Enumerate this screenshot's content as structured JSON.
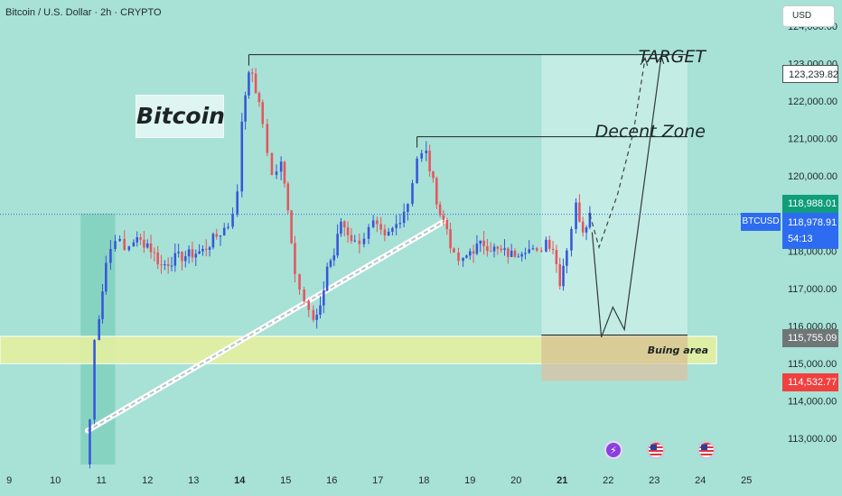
{
  "header": {
    "title": "Bitcoin / U.S. Dollar · 2h · CRYPTO"
  },
  "currency_button": "USD",
  "symbol_tag": "BTCUSD",
  "annotations": {
    "bitcoin_label": "Bitcoin",
    "target": "TARGET",
    "decent_zone": "Decent Zone",
    "buying_area": "Buing area"
  },
  "price_tags": {
    "target": "123,239.82",
    "high": "118,988.01",
    "current": "118,978.91",
    "countdown": "54:13",
    "buy_top": "115,755.09",
    "buy_bottom": "114,532.77"
  },
  "colors": {
    "background": "#a8e1d6",
    "up_candle": "#3556d9",
    "down_candle": "#e5555d",
    "buying_zone": "#e3f0a0",
    "forecast_box": "#c8ede6",
    "current_line": "#2d6cf0"
  },
  "icons": [
    "flash-icon",
    "us-flag-icon",
    "us-flag-icon"
  ],
  "chart_data": {
    "type": "candlestick",
    "ylim": [
      112300,
      124700
    ],
    "xlim": [
      8.8,
      25.7
    ],
    "y_ticks": [
      {
        "value": 113000,
        "label": "113,000.00"
      },
      {
        "value": 114000,
        "label": "114,000.00"
      },
      {
        "value": 115000,
        "label": "115,000.00"
      },
      {
        "value": 116000,
        "label": "116,000.00"
      },
      {
        "value": 117000,
        "label": "117,000.00"
      },
      {
        "value": 118000,
        "label": "118,000.00"
      },
      {
        "value": 119000,
        "label": "119,000.00"
      },
      {
        "value": 120000,
        "label": "120,000.00"
      },
      {
        "value": 121000,
        "label": "121,000.00"
      },
      {
        "value": 122000,
        "label": "122,000.00"
      },
      {
        "value": 123000,
        "label": "123,000.00"
      },
      {
        "value": 124000,
        "label": "124,000.00"
      }
    ],
    "x_ticks": [
      {
        "value": 9,
        "label": "9",
        "bold": false
      },
      {
        "value": 10,
        "label": "10",
        "bold": false
      },
      {
        "value": 11,
        "label": "11",
        "bold": false
      },
      {
        "value": 12,
        "label": "12",
        "bold": false
      },
      {
        "value": 13,
        "label": "13",
        "bold": false
      },
      {
        "value": 14,
        "label": "14",
        "bold": true
      },
      {
        "value": 15,
        "label": "15",
        "bold": false
      },
      {
        "value": 16,
        "label": "16",
        "bold": false
      },
      {
        "value": 17,
        "label": "17",
        "bold": false
      },
      {
        "value": 18,
        "label": "18",
        "bold": false
      },
      {
        "value": 19,
        "label": "19",
        "bold": false
      },
      {
        "value": 20,
        "label": "20",
        "bold": false
      },
      {
        "value": 21,
        "label": "21",
        "bold": true
      },
      {
        "value": 22,
        "label": "22",
        "bold": false
      },
      {
        "value": 23,
        "label": "23",
        "bold": false
      },
      {
        "value": 24,
        "label": "24",
        "bold": false
      },
      {
        "value": 25,
        "label": "25",
        "bold": false
      }
    ],
    "anchors": [
      [
        10.65,
        112300
      ],
      [
        10.75,
        113500
      ],
      [
        10.85,
        115600
      ],
      [
        10.95,
        116300
      ],
      [
        11.1,
        117700
      ],
      [
        11.3,
        118400
      ],
      [
        11.5,
        118000
      ],
      [
        11.7,
        118300
      ],
      [
        12.0,
        118200
      ],
      [
        12.3,
        117600
      ],
      [
        12.6,
        117800
      ],
      [
        12.9,
        117900
      ],
      [
        13.2,
        118000
      ],
      [
        13.5,
        118400
      ],
      [
        13.75,
        118700
      ],
      [
        13.95,
        119500
      ],
      [
        14.05,
        121500
      ],
      [
        14.2,
        122900
      ],
      [
        14.35,
        122300
      ],
      [
        14.5,
        121400
      ],
      [
        14.7,
        120000
      ],
      [
        14.9,
        120300
      ],
      [
        15.05,
        119200
      ],
      [
        15.2,
        117400
      ],
      [
        15.4,
        116800
      ],
      [
        15.6,
        116100
      ],
      [
        15.75,
        116400
      ],
      [
        15.9,
        117600
      ],
      [
        16.05,
        117900
      ],
      [
        16.2,
        118800
      ],
      [
        16.35,
        118500
      ],
      [
        16.5,
        118200
      ],
      [
        16.7,
        118400
      ],
      [
        16.9,
        118700
      ],
      [
        17.15,
        118300
      ],
      [
        17.4,
        118700
      ],
      [
        17.65,
        119300
      ],
      [
        17.85,
        120500
      ],
      [
        18.05,
        120600
      ],
      [
        18.2,
        119800
      ],
      [
        18.35,
        119000
      ],
      [
        18.5,
        118600
      ],
      [
        18.65,
        117800
      ],
      [
        18.85,
        117700
      ],
      [
        19.0,
        118000
      ],
      [
        19.3,
        118200
      ],
      [
        19.6,
        118000
      ],
      [
        19.9,
        117900
      ],
      [
        20.2,
        118100
      ],
      [
        20.45,
        117900
      ],
      [
        20.65,
        118300
      ],
      [
        20.8,
        118100
      ],
      [
        20.95,
        117200
      ],
      [
        21.1,
        118100
      ],
      [
        21.3,
        119200
      ],
      [
        21.45,
        118600
      ],
      [
        21.6,
        118978.91
      ]
    ],
    "support_trendline": [
      [
        10.7,
        113200
      ],
      [
        18.45,
        118800
      ]
    ],
    "zones": {
      "buying_area": {
        "x": [
          8.8,
          24.35
        ],
        "y": [
          114990,
          115720
        ]
      },
      "forecast_box": {
        "x": [
          20.55,
          23.72
        ],
        "y": [
          114532.77,
          123239.82
        ]
      },
      "entry_box": {
        "x": [
          10.55,
          11.3
        ],
        "y": [
          112300,
          119000
        ]
      }
    },
    "levels": {
      "target": {
        "value": 123239.82,
        "x": [
          14.2,
          23.72
        ]
      },
      "decent_zone": {
        "value": 121050,
        "x": [
          17.85,
          23.72
        ]
      },
      "buy_top": 115755.09,
      "current": 118978.91
    },
    "projections": {
      "dashed": [
        [
          21.6,
          118978.91
        ],
        [
          21.8,
          118100
        ],
        [
          22.2,
          119500
        ],
        [
          22.55,
          121200
        ],
        [
          22.8,
          123150
        ]
      ],
      "solid": [
        [
          21.65,
          118500
        ],
        [
          21.85,
          115700
        ],
        [
          22.1,
          116500
        ],
        [
          22.35,
          115900
        ],
        [
          23.15,
          123200
        ]
      ]
    }
  }
}
